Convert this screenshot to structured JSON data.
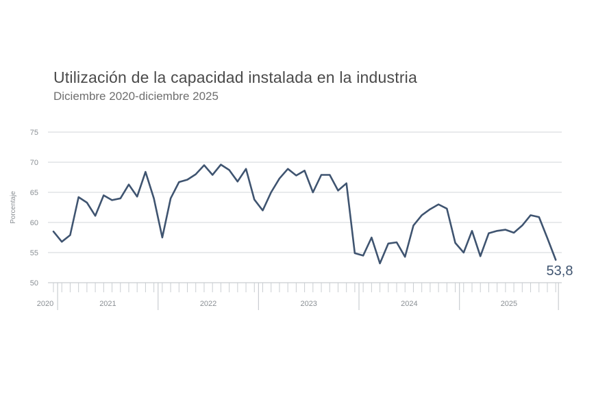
{
  "chart_data": {
    "type": "line",
    "title": "Utilización de la capacidad instalada en la industria",
    "subtitle": "Diciembre 2020-diciembre 2025",
    "ylabel": "Porcentaje",
    "xlabel": "",
    "ylim": [
      50,
      75
    ],
    "yticks": [
      50,
      55,
      60,
      65,
      70,
      75
    ],
    "years": [
      "2020",
      "2021",
      "2022",
      "2023",
      "2024",
      "2025"
    ],
    "grid": true,
    "series": [
      {
        "name": "Utilización de la capacidad instalada",
        "start": "2020-12",
        "values": [
          58.5,
          56.8,
          57.9,
          64.2,
          63.3,
          61.1,
          64.5,
          63.7,
          64.0,
          66.3,
          64.3,
          68.4,
          64.0,
          57.5,
          64.0,
          66.7,
          67.1,
          68.0,
          69.5,
          67.9,
          69.6,
          68.7,
          66.8,
          68.9,
          63.8,
          62.0,
          65.0,
          67.3,
          68.9,
          67.8,
          68.6,
          65.0,
          67.9,
          67.9,
          65.3,
          66.5,
          54.9,
          54.5,
          57.5,
          53.2,
          56.5,
          56.7,
          54.3,
          59.5,
          61.2,
          62.2,
          63.0,
          62.3,
          56.6,
          55.0,
          58.6,
          54.4,
          58.2,
          58.6,
          58.8,
          58.3,
          59.5,
          61.2,
          60.9,
          57.4,
          53.8
        ]
      }
    ],
    "last_value_label": "53,8"
  }
}
